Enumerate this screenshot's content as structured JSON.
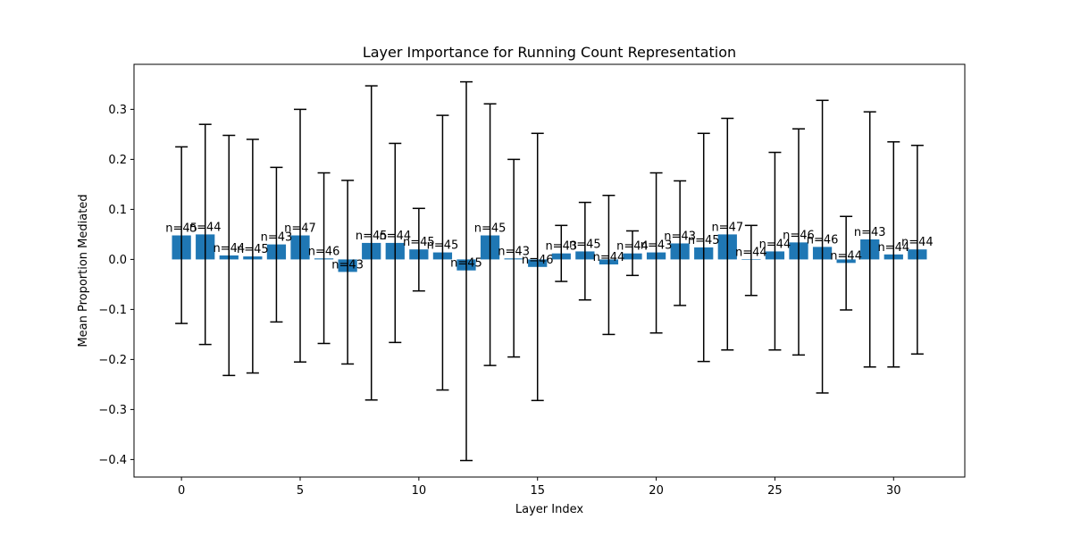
{
  "chart_data": {
    "type": "bar",
    "title": "Layer Importance for Running Count Representation",
    "xlabel": "Layer Index",
    "ylabel": "Mean Proportion Mediated",
    "bar_color": "#1f77b4",
    "error_color": "#000000",
    "xlim": [
      -2,
      33
    ],
    "ylim": [
      -0.435,
      0.39
    ],
    "xticks": [
      0,
      5,
      10,
      15,
      20,
      25,
      30
    ],
    "yticks": [
      -0.4,
      -0.3,
      -0.2,
      -0.1,
      0.0,
      0.1,
      0.2,
      0.3
    ],
    "ytick_labels": [
      "−0.4",
      "−0.3",
      "−0.2",
      "−0.1",
      "0.0",
      "0.1",
      "0.2",
      "0.3"
    ],
    "x": [
      0,
      1,
      2,
      3,
      4,
      5,
      6,
      7,
      8,
      9,
      10,
      11,
      12,
      13,
      14,
      15,
      16,
      17,
      18,
      19,
      20,
      21,
      22,
      23,
      24,
      25,
      26,
      27,
      28,
      29,
      30,
      31
    ],
    "values": [
      0.048,
      0.05,
      0.008,
      0.006,
      0.03,
      0.048,
      0.002,
      -0.025,
      0.033,
      0.033,
      0.02,
      0.014,
      -0.022,
      0.048,
      0.002,
      -0.015,
      0.012,
      0.016,
      -0.01,
      0.012,
      0.014,
      0.032,
      0.024,
      0.05,
      0.0,
      0.016,
      0.034,
      0.025,
      -0.007,
      0.04,
      0.01,
      0.02
    ],
    "error_low": [
      -0.128,
      -0.17,
      -0.232,
      -0.227,
      -0.125,
      -0.205,
      -0.168,
      -0.209,
      -0.281,
      -0.166,
      -0.063,
      -0.261,
      -0.402,
      -0.212,
      -0.195,
      -0.282,
      -0.044,
      -0.081,
      -0.15,
      -0.032,
      -0.147,
      -0.092,
      -0.204,
      -0.181,
      -0.072,
      -0.181,
      -0.191,
      -0.267,
      -0.101,
      -0.215,
      -0.215,
      -0.189
    ],
    "error_high": [
      0.225,
      0.27,
      0.248,
      0.24,
      0.184,
      0.3,
      0.173,
      0.158,
      0.347,
      0.232,
      0.102,
      0.288,
      0.355,
      0.311,
      0.2,
      0.252,
      0.068,
      0.114,
      0.128,
      0.057,
      0.173,
      0.157,
      0.252,
      0.282,
      0.068,
      0.214,
      0.261,
      0.318,
      0.086,
      0.295,
      0.235,
      0.228
    ],
    "labels": [
      "n=45",
      "n=44",
      "n=44",
      "n=45",
      "n=43",
      "n=47",
      "n=46",
      "n=43",
      "n=45",
      "n=44",
      "n=45",
      "n=45",
      "n=45",
      "n=45",
      "n=43",
      "n=46",
      "n=43",
      "n=45",
      "n=44",
      "n=44",
      "n=43",
      "n=43",
      "n=45",
      "n=47",
      "n=44",
      "n=44",
      "n=46",
      "n=46",
      "n=44",
      "n=43",
      "n=44",
      "n=44"
    ]
  }
}
